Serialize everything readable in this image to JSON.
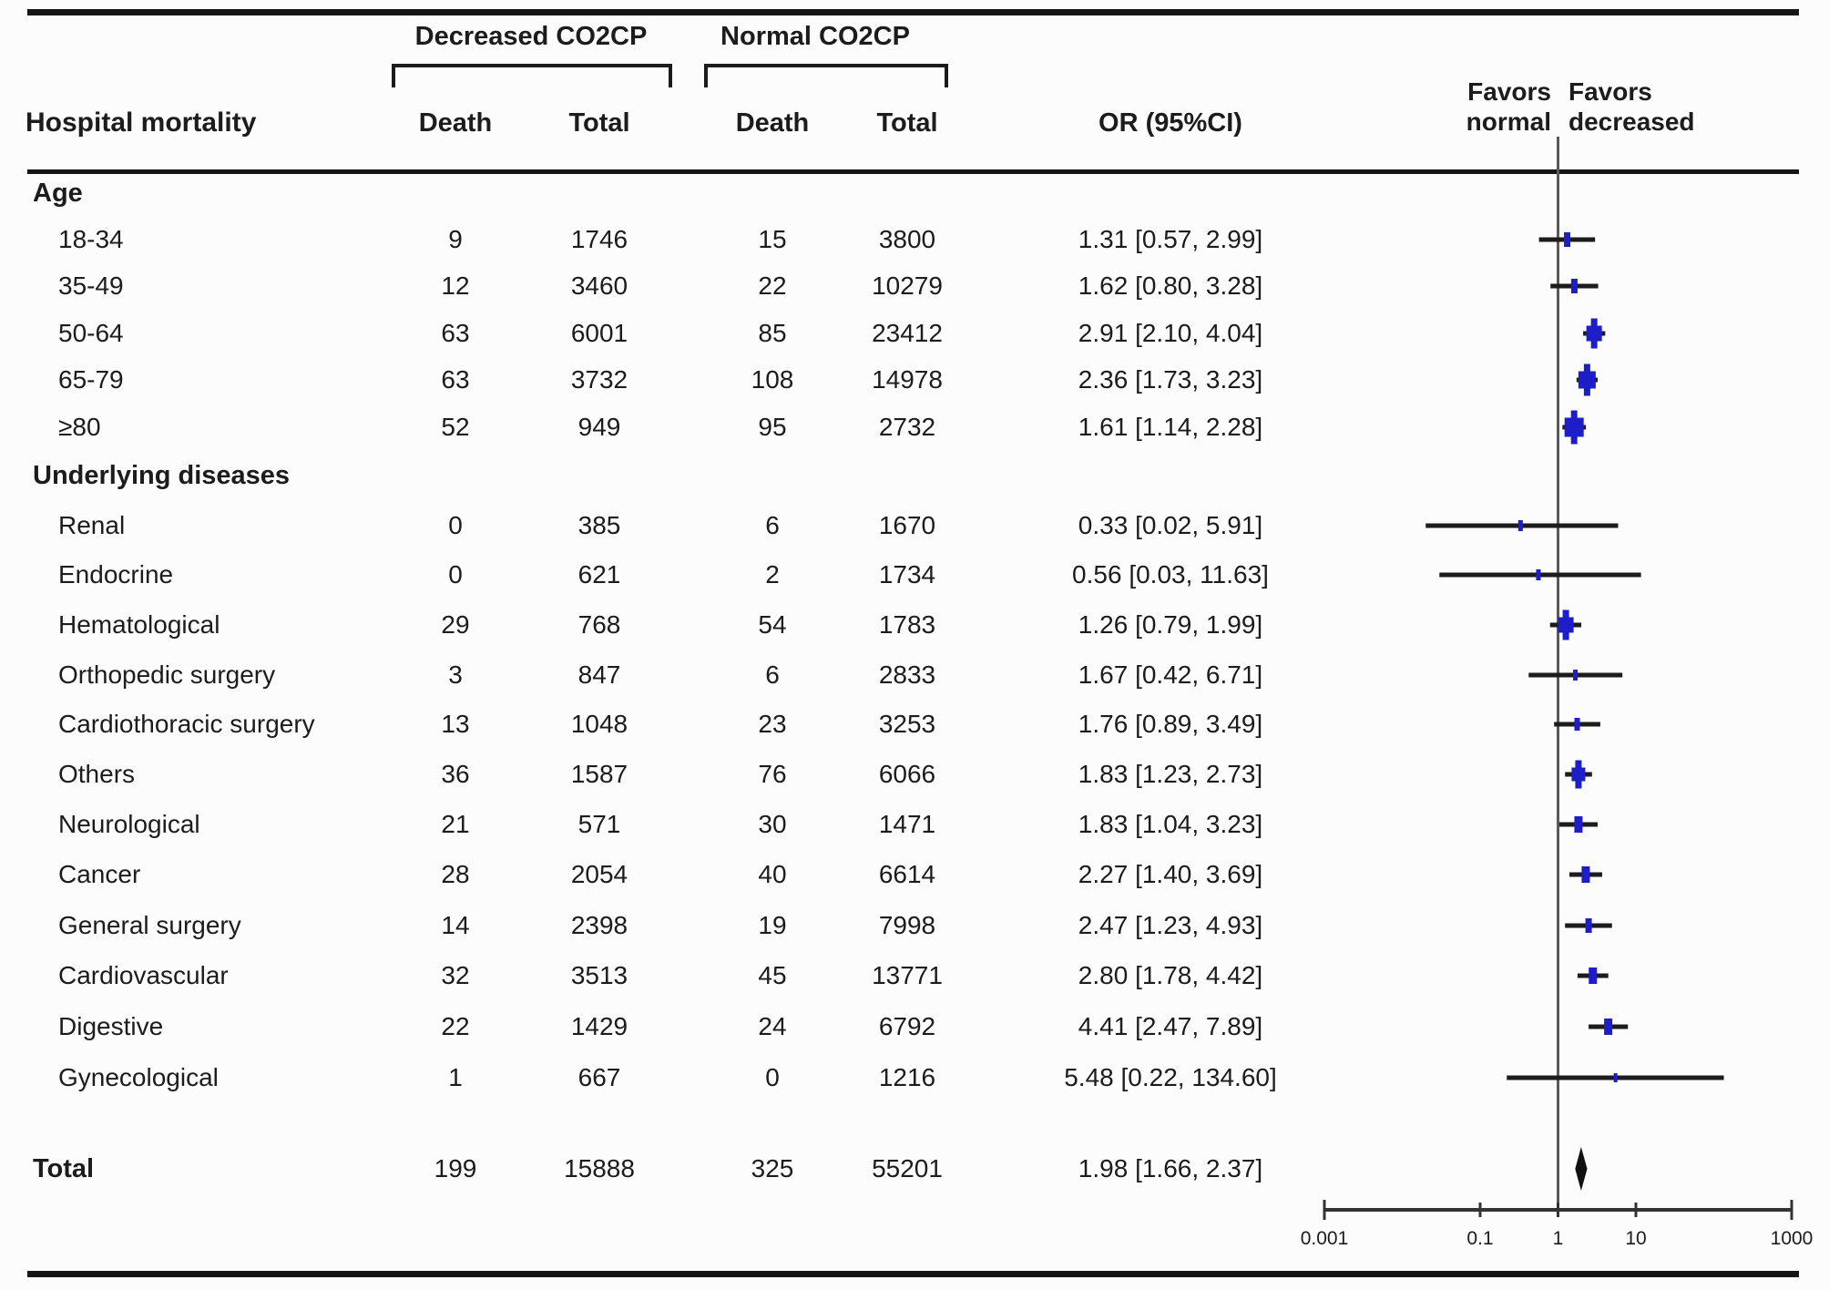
{
  "figure": {
    "col_header": "Hospital mortality",
    "group1_header": "Decreased CO2CP",
    "group2_header": "Normal CO2CP",
    "sub_headers": {
      "death1": "Death",
      "total1": "Total",
      "death2": "Death",
      "total2": "Total"
    },
    "or_header": "OR (95%CI)",
    "favors_normal": {
      "line1": "Favors",
      "line2": "normal"
    },
    "favors_decreased": {
      "line1": "Favors",
      "line2": "decreased"
    }
  },
  "rows": [
    {
      "label": "Age",
      "section": true
    },
    {
      "label": "18-34",
      "death1": "9",
      "total1": "1746",
      "death2": "15",
      "total2": "3800",
      "or_text": "1.31 [0.57, 2.99]"
    },
    {
      "label": "35-49",
      "death1": "12",
      "total1": "3460",
      "death2": "22",
      "total2": "10279",
      "or_text": "1.62 [0.80, 3.28]"
    },
    {
      "label": "50-64",
      "death1": "63",
      "total1": "6001",
      "death2": "85",
      "total2": "23412",
      "or_text": "2.91 [2.10, 4.04]"
    },
    {
      "label": "65-79",
      "death1": "63",
      "total1": "3732",
      "death2": "108",
      "total2": "14978",
      "or_text": "2.36 [1.73, 3.23]"
    },
    {
      "label": "≥80",
      "death1": "52",
      "total1": "949",
      "death2": "95",
      "total2": "2732",
      "or_text": "1.61 [1.14, 2.28]"
    },
    {
      "label": "Underlying diseases",
      "section": true
    },
    {
      "label": "Renal",
      "death1": "0",
      "total1": "385",
      "death2": "6",
      "total2": "1670",
      "or_text": "0.33 [0.02, 5.91]"
    },
    {
      "label": "Endocrine",
      "death1": "0",
      "total1": "621",
      "death2": "2",
      "total2": "1734",
      "or_text": "0.56 [0.03, 11.63]"
    },
    {
      "label": "Hematological",
      "death1": "29",
      "total1": "768",
      "death2": "54",
      "total2": "1783",
      "or_text": "1.26 [0.79, 1.99]"
    },
    {
      "label": "Orthopedic surgery",
      "death1": "3",
      "total1": "847",
      "death2": "6",
      "total2": "2833",
      "or_text": "1.67 [0.42, 6.71]"
    },
    {
      "label": "Cardiothoracic surgery",
      "death1": "13",
      "total1": "1048",
      "death2": "23",
      "total2": "3253",
      "or_text": "1.76 [0.89, 3.49]"
    },
    {
      "label": "Others",
      "death1": "36",
      "total1": "1587",
      "death2": "76",
      "total2": "6066",
      "or_text": "1.83 [1.23, 2.73]"
    },
    {
      "label": "Neurological",
      "death1": "21",
      "total1": "571",
      "death2": "30",
      "total2": "1471",
      "or_text": "1.83 [1.04, 3.23]"
    },
    {
      "label": "Cancer",
      "death1": "28",
      "total1": "2054",
      "death2": "40",
      "total2": "6614",
      "or_text": "2.27 [1.40, 3.69]"
    },
    {
      "label": "General surgery",
      "death1": "14",
      "total1": "2398",
      "death2": "19",
      "total2": "7998",
      "or_text": "2.47 [1.23, 4.93]"
    },
    {
      "label": "Cardiovascular",
      "death1": "32",
      "total1": "3513",
      "death2": "45",
      "total2": "13771",
      "or_text": "2.80 [1.78, 4.42]"
    },
    {
      "label": "Digestive",
      "death1": "22",
      "total1": "1429",
      "death2": "24",
      "total2": "6792",
      "or_text": "4.41 [2.47, 7.89]"
    },
    {
      "label": "Gynecological",
      "death1": "1",
      "total1": "667",
      "death2": "0",
      "total2": "1216",
      "or_text": "5.48 [0.22, 134.60]"
    },
    {
      "label": "Total",
      "section": true,
      "total_row": true,
      "death1": "199",
      "total1": "15888",
      "death2": "325",
      "total2": "55201",
      "or_text": "1.98 [1.66, 2.37]"
    }
  ],
  "chart_data": {
    "type": "forest",
    "x_scale": "log10",
    "axis_range": [
      0.001,
      1000
    ],
    "axis_ticks": [
      0.001,
      0.1,
      1,
      10,
      1000
    ],
    "axis_tick_labels": [
      "0.001",
      "0.1",
      "1",
      "10",
      "1000"
    ],
    "reference_value": 1,
    "favors_left_label": "Favors normal",
    "favors_right_label": "Favors decreased",
    "estimates": [
      {
        "label": "18-34",
        "or": 1.31,
        "ci_low": 0.57,
        "ci_high": 2.99,
        "square": 0,
        "tick": [
          7,
          16
        ]
      },
      {
        "label": "35-49",
        "or": 1.62,
        "ci_low": 0.8,
        "ci_high": 3.28,
        "square": 0,
        "tick": [
          7,
          16
        ]
      },
      {
        "label": "50-64",
        "or": 2.91,
        "ci_low": 2.1,
        "ci_high": 4.04,
        "square": 17,
        "tick": [
          7,
          33
        ]
      },
      {
        "label": "65-79",
        "or": 2.36,
        "ci_low": 1.73,
        "ci_high": 3.23,
        "square": 19,
        "tick": [
          7,
          35
        ]
      },
      {
        "label": "≥80",
        "or": 1.61,
        "ci_low": 1.14,
        "ci_high": 2.28,
        "square": 21,
        "tick": [
          7,
          37
        ]
      },
      {
        "label": "Renal",
        "or": 0.33,
        "ci_low": 0.02,
        "ci_high": 5.91,
        "square": 0,
        "tick": [
          5,
          12
        ]
      },
      {
        "label": "Endocrine",
        "or": 0.56,
        "ci_low": 0.03,
        "ci_high": 11.63,
        "square": 0,
        "tick": [
          5,
          12
        ]
      },
      {
        "label": "Hematological",
        "or": 1.26,
        "ci_low": 0.79,
        "ci_high": 1.99,
        "square": 17,
        "tick": [
          7,
          33
        ]
      },
      {
        "label": "Orthopedic surgery",
        "or": 1.67,
        "ci_low": 0.42,
        "ci_high": 6.71,
        "square": 0,
        "tick": [
          5,
          12
        ]
      },
      {
        "label": "Cardiothoracic surgery",
        "or": 1.76,
        "ci_low": 0.89,
        "ci_high": 3.49,
        "square": 0,
        "tick": [
          6,
          14
        ]
      },
      {
        "label": "Others",
        "or": 1.83,
        "ci_low": 1.23,
        "ci_high": 2.73,
        "square": 15,
        "tick": [
          7,
          31
        ]
      },
      {
        "label": "Neurological",
        "or": 1.83,
        "ci_low": 1.04,
        "ci_high": 3.23,
        "square": 0,
        "tick": [
          9,
          18
        ]
      },
      {
        "label": "Cancer",
        "or": 2.27,
        "ci_low": 1.4,
        "ci_high": 3.69,
        "square": 0,
        "tick": [
          9,
          18
        ]
      },
      {
        "label": "General surgery",
        "or": 2.47,
        "ci_low": 1.23,
        "ci_high": 4.93,
        "square": 0,
        "tick": [
          7,
          16
        ]
      },
      {
        "label": "Cardiovascular",
        "or": 2.8,
        "ci_low": 1.78,
        "ci_high": 4.42,
        "square": 0,
        "tick": [
          9,
          18
        ]
      },
      {
        "label": "Digestive",
        "or": 4.41,
        "ci_low": 2.47,
        "ci_high": 7.89,
        "square": 0,
        "tick": [
          9,
          18
        ]
      },
      {
        "label": "Gynecological",
        "or": 5.48,
        "ci_low": 0.22,
        "ci_high": 134.6,
        "square": 0,
        "tick": [
          4,
          10
        ]
      }
    ],
    "summary": {
      "label": "Total",
      "or": 1.98,
      "ci_low": 1.66,
      "ci_high": 2.37,
      "shape": "diamond"
    },
    "colors": {
      "marker": "#1e1ec8",
      "ci_line": "#1c1c1c",
      "reference_line": "#5a5a5a",
      "axis_line": "#333333",
      "diamond": "#111111"
    }
  }
}
